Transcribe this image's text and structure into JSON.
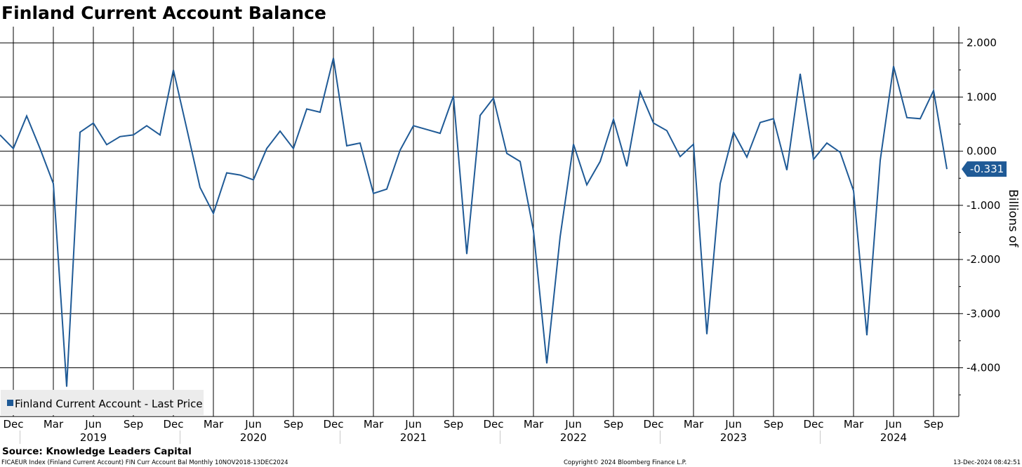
{
  "chart_data": {
    "type": "line",
    "title": "Finland Current Account Balance",
    "ylabel": "Billions of",
    "ylim": [
      -4.9,
      2.3
    ],
    "yticks": [
      2.0,
      1.0,
      0.0,
      -1.0,
      -2.0,
      -3.0,
      -4.0
    ],
    "ytick_labels": [
      "2.000",
      "1.000",
      "0.000",
      "-1.000",
      "-2.000",
      "-3.000",
      "-4.000"
    ],
    "grid": true,
    "legend_position": "bottom-left",
    "series": [
      {
        "name": "Finland Current Account - Last Price",
        "color": "#1f5a96",
        "x": [
          "2018-11",
          "2018-12",
          "2019-01",
          "2019-02",
          "2019-03",
          "2019-04",
          "2019-05",
          "2019-06",
          "2019-07",
          "2019-08",
          "2019-09",
          "2019-10",
          "2019-11",
          "2019-12",
          "2020-01",
          "2020-02",
          "2020-03",
          "2020-04",
          "2020-05",
          "2020-06",
          "2020-07",
          "2020-08",
          "2020-09",
          "2020-10",
          "2020-11",
          "2020-12",
          "2021-01",
          "2021-02",
          "2021-03",
          "2021-04",
          "2021-05",
          "2021-06",
          "2021-07",
          "2021-08",
          "2021-09",
          "2021-10",
          "2021-11",
          "2021-12",
          "2022-01",
          "2022-02",
          "2022-03",
          "2022-04",
          "2022-05",
          "2022-06",
          "2022-07",
          "2022-08",
          "2022-09",
          "2022-10",
          "2022-11",
          "2022-12",
          "2023-01",
          "2023-02",
          "2023-03",
          "2023-04",
          "2023-05",
          "2023-06",
          "2023-07",
          "2023-08",
          "2023-09",
          "2023-10",
          "2023-11",
          "2023-12",
          "2024-01",
          "2024-02",
          "2024-03",
          "2024-04",
          "2024-05",
          "2024-06",
          "2024-07",
          "2024-08",
          "2024-09",
          "2024-10"
        ],
        "values": [
          0.3,
          0.05,
          0.65,
          0.05,
          -0.6,
          -4.35,
          0.35,
          0.52,
          0.12,
          0.27,
          0.3,
          0.47,
          0.3,
          1.5,
          0.42,
          -0.67,
          -1.15,
          -0.4,
          -0.44,
          -0.53,
          0.05,
          0.37,
          0.05,
          0.78,
          0.72,
          1.72,
          0.1,
          0.15,
          -0.78,
          -0.7,
          0.02,
          0.47,
          0.4,
          0.33,
          1.02,
          -1.9,
          0.66,
          0.98,
          -0.04,
          -0.19,
          -1.47,
          -3.92,
          -1.58,
          0.13,
          -0.62,
          -0.19,
          0.59,
          -0.28,
          1.1,
          0.52,
          0.38,
          -0.1,
          0.13,
          -3.38,
          -0.6,
          0.35,
          -0.11,
          0.53,
          0.6,
          -0.35,
          1.43,
          -0.15,
          0.15,
          -0.02,
          -0.73,
          -3.4,
          -0.17,
          1.57,
          0.62,
          0.6,
          1.12,
          -0.331
        ]
      }
    ],
    "last_value_label": "-0.331",
    "x_month_ticks": [
      {
        "label": "Dec",
        "at": "2018-12"
      },
      {
        "label": "Mar",
        "at": "2019-03"
      },
      {
        "label": "Jun",
        "at": "2019-06"
      },
      {
        "label": "Sep",
        "at": "2019-09"
      },
      {
        "label": "Dec",
        "at": "2019-12"
      },
      {
        "label": "Mar",
        "at": "2020-03"
      },
      {
        "label": "Jun",
        "at": "2020-06"
      },
      {
        "label": "Sep",
        "at": "2020-09"
      },
      {
        "label": "Dec",
        "at": "2020-12"
      },
      {
        "label": "Mar",
        "at": "2021-03"
      },
      {
        "label": "Jun",
        "at": "2021-06"
      },
      {
        "label": "Sep",
        "at": "2021-09"
      },
      {
        "label": "Dec",
        "at": "2021-12"
      },
      {
        "label": "Mar",
        "at": "2022-03"
      },
      {
        "label": "Jun",
        "at": "2022-06"
      },
      {
        "label": "Sep",
        "at": "2022-09"
      },
      {
        "label": "Dec",
        "at": "2022-12"
      },
      {
        "label": "Mar",
        "at": "2023-03"
      },
      {
        "label": "Jun",
        "at": "2023-06"
      },
      {
        "label": "Sep",
        "at": "2023-09"
      },
      {
        "label": "Dec",
        "at": "2023-12"
      },
      {
        "label": "Mar",
        "at": "2024-03"
      },
      {
        "label": "Jun",
        "at": "2024-06"
      },
      {
        "label": "Sep",
        "at": "2024-09"
      }
    ],
    "x_year_labels": [
      {
        "label": "2019",
        "at": "2019-06"
      },
      {
        "label": "2020",
        "at": "2020-06"
      },
      {
        "label": "2021",
        "at": "2021-06"
      },
      {
        "label": "2022",
        "at": "2022-06"
      },
      {
        "label": "2023",
        "at": "2023-06"
      },
      {
        "label": "2024",
        "at": "2024-06"
      }
    ],
    "x_year_boundaries": [
      "2019-01",
      "2020-01",
      "2021-01",
      "2022-01",
      "2023-01",
      "2024-01"
    ]
  },
  "source": "Source: Knowledge Leaders Capital",
  "footer": {
    "left": "FICAEUR Index (Finland Current Account) FIN Curr Account Bal  Monthly 10NOV2018-13DEC2024",
    "center": "Copyright© 2024 Bloomberg Finance L.P.",
    "right": "13-Dec-2024 08:42:51"
  }
}
